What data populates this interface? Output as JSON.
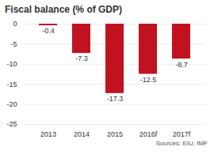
{
  "chart_data": {
    "type": "bar",
    "title": "Fiscal balance (% of GDP)",
    "categories": [
      "2013",
      "2014",
      "2015",
      "2016f",
      "2017f"
    ],
    "values": [
      -0.4,
      -7.3,
      -17.3,
      -12.5,
      -8.7
    ],
    "color": "#c1121f",
    "ylim": [
      -25,
      0
    ],
    "yticks": [
      0,
      -5,
      -10,
      -15,
      -20,
      -25
    ],
    "grid": true,
    "data_labels": true,
    "caption": "Sources: EIU, IMF"
  }
}
